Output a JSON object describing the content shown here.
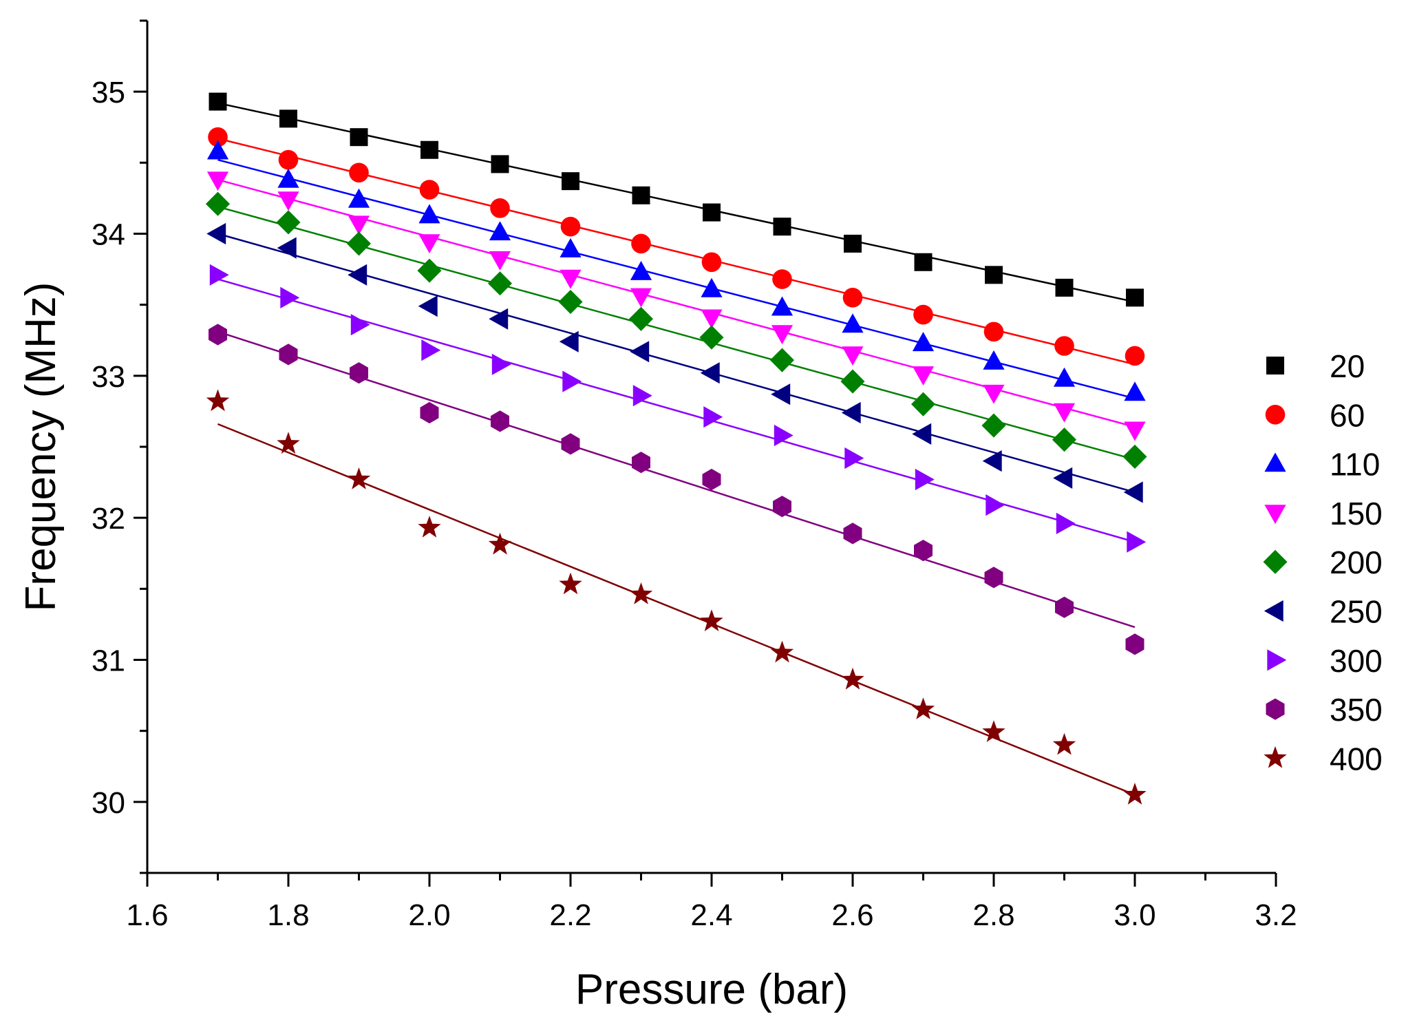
{
  "chart_data": {
    "type": "scatter",
    "title": "",
    "xlabel": "Pressure (bar)",
    "ylabel": "Frequency (MHz)",
    "xlim": [
      1.6,
      3.2
    ],
    "ylim": [
      29.5,
      35.5
    ],
    "x_ticks": [
      "1.6",
      "1.8",
      "2.0",
      "2.2",
      "2.4",
      "2.6",
      "2.8",
      "3.0",
      "3.2"
    ],
    "y_ticks": [
      "30",
      "31",
      "32",
      "33",
      "34",
      "35"
    ],
    "grid": false,
    "legend_position": "right",
    "fit_lines": true,
    "x": [
      1.7,
      1.8,
      1.9,
      2.0,
      2.1,
      2.2,
      2.3,
      2.4,
      2.5,
      2.6,
      2.7,
      2.8,
      2.9,
      3.0
    ],
    "series": [
      {
        "name": "20",
        "color": "#000000",
        "marker": "square",
        "values": [
          34.93,
          34.81,
          34.68,
          34.59,
          34.49,
          34.37,
          34.27,
          34.15,
          34.05,
          33.93,
          33.8,
          33.71,
          33.62,
          33.55
        ],
        "fit": [
          34.92,
          33.52
        ]
      },
      {
        "name": "60",
        "color": "#ff0000",
        "marker": "circle",
        "values": [
          34.68,
          34.52,
          34.43,
          34.31,
          34.18,
          34.05,
          33.93,
          33.8,
          33.68,
          33.55,
          33.43,
          33.31,
          33.21,
          33.14
        ],
        "fit": [
          34.67,
          33.08
        ]
      },
      {
        "name": "110",
        "color": "#0000ff",
        "marker": "triangle-up",
        "values": [
          34.58,
          34.38,
          34.24,
          34.13,
          34.01,
          33.89,
          33.73,
          33.61,
          33.48,
          33.36,
          33.23,
          33.1,
          32.98,
          32.88
        ],
        "fit": [
          34.52,
          32.84
        ]
      },
      {
        "name": "150",
        "color": "#ff00ff",
        "marker": "triangle-down",
        "values": [
          34.38,
          34.24,
          34.07,
          33.94,
          33.82,
          33.69,
          33.56,
          33.41,
          33.3,
          33.15,
          33.01,
          32.88,
          32.75,
          32.62
        ],
        "fit": [
          34.38,
          32.64
        ]
      },
      {
        "name": "200",
        "color": "#008000",
        "marker": "diamond",
        "values": [
          34.21,
          34.08,
          33.93,
          33.74,
          33.65,
          33.52,
          33.4,
          33.27,
          33.11,
          32.96,
          32.8,
          32.65,
          32.55,
          32.43
        ],
        "fit": [
          34.19,
          32.41
        ]
      },
      {
        "name": "250",
        "color": "#000080",
        "marker": "triangle-left",
        "values": [
          34.0,
          33.9,
          33.71,
          33.49,
          33.4,
          33.24,
          33.17,
          33.02,
          32.87,
          32.74,
          32.59,
          32.4,
          32.28,
          32.18
        ],
        "fit": [
          34.0,
          32.18
        ]
      },
      {
        "name": "300",
        "color": "#8a00ff",
        "marker": "triangle-right",
        "values": [
          33.71,
          33.55,
          33.36,
          33.18,
          33.08,
          32.96,
          32.86,
          32.71,
          32.58,
          32.42,
          32.27,
          32.09,
          31.96,
          31.83
        ],
        "fit": [
          33.68,
          31.83
        ]
      },
      {
        "name": "350",
        "color": "#800080",
        "marker": "hexagon",
        "values": [
          33.29,
          33.15,
          33.02,
          32.74,
          32.68,
          32.52,
          32.39,
          32.27,
          32.08,
          31.89,
          31.77,
          31.58,
          31.37,
          31.11
        ],
        "fit": [
          33.31,
          31.23
        ]
      },
      {
        "name": "400",
        "color": "#800000",
        "marker": "star",
        "values": [
          32.82,
          32.52,
          32.27,
          31.93,
          31.81,
          31.53,
          31.46,
          31.27,
          31.05,
          30.86,
          30.65,
          30.49,
          30.4,
          30.05
        ],
        "fit": [
          32.66,
          30.05
        ]
      }
    ]
  }
}
